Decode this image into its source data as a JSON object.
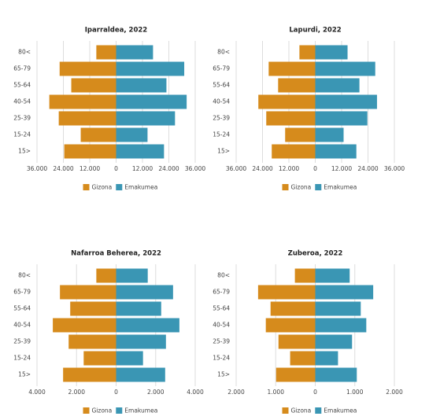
{
  "chart_data": [
    {
      "type": "pyramid",
      "title": "Iparraldea, 2022",
      "categories": [
        "80<",
        "65-79",
        "55-64",
        "40-54",
        "25-39",
        "15-24",
        "15>"
      ],
      "series": [
        {
          "name": "Gizona",
          "color": "#d68b1c",
          "values": [
            -9000,
            -25700,
            -20400,
            -30400,
            -26100,
            -16100,
            -23600
          ]
        },
        {
          "name": "Emakumea",
          "color": "#3a96b4",
          "values": [
            16800,
            31000,
            22900,
            32100,
            26800,
            14300,
            21800
          ]
        }
      ],
      "xlim": [
        -36000,
        36000
      ],
      "xticks": [
        {
          "value": -36000,
          "label": "36.000"
        },
        {
          "value": -24000,
          "label": "24.000"
        },
        {
          "value": -12000,
          "label": "12.000"
        },
        0,
        {
          "value": 12000,
          "label": "12.000"
        },
        {
          "value": 24000,
          "label": "24.000"
        },
        {
          "value": 36000,
          "label": "36.000"
        }
      ],
      "grid": true
    },
    {
      "type": "pyramid",
      "title": "Lapurdi, 2022",
      "categories": [
        "80<",
        "65-79",
        "55-64",
        "40-54",
        "25-39",
        "15-24",
        "15>"
      ],
      "series": [
        {
          "name": "Gizona",
          "color": "#d68b1c",
          "values": [
            -7200,
            -21200,
            -16900,
            -25900,
            -22300,
            -13700,
            -19800
          ]
        },
        {
          "name": "Emakumea",
          "color": "#3a96b4",
          "values": [
            14700,
            27300,
            20100,
            28100,
            23700,
            12900,
            18700
          ]
        }
      ],
      "xlim": [
        -36000,
        36000
      ],
      "xticks": [
        {
          "value": -36000,
          "label": "36.000"
        },
        {
          "value": -24000,
          "label": "24.000"
        },
        {
          "value": -12000,
          "label": "12.000"
        },
        0,
        {
          "value": 12000,
          "label": "12.000"
        },
        {
          "value": 24000,
          "label": "24.000"
        },
        {
          "value": 36000,
          "label": "36.000"
        }
      ],
      "grid": true
    },
    {
      "type": "pyramid",
      "title": "Nafarroa Beherea, 2022",
      "categories": [
        "80<",
        "65-79",
        "55-64",
        "40-54",
        "25-39",
        "15-24",
        "15>"
      ],
      "series": [
        {
          "name": "Gizona",
          "color": "#d68b1c",
          "values": [
            -1000,
            -2840,
            -2320,
            -3200,
            -2400,
            -1640,
            -2680
          ]
        },
        {
          "name": "Emakumea",
          "color": "#3a96b4",
          "values": [
            1600,
            2880,
            2280,
            3200,
            2520,
            1360,
            2480
          ]
        }
      ],
      "xlim": [
        -4000,
        4000
      ],
      "xticks": [
        {
          "value": -4000,
          "label": "4.000"
        },
        {
          "value": -2000,
          "label": "2.000"
        },
        0,
        {
          "value": 2000,
          "label": "2.000"
        },
        {
          "value": 4000,
          "label": "4.000"
        }
      ],
      "grid": true
    },
    {
      "type": "pyramid",
      "title": "Zuberoa, 2022",
      "categories": [
        "80<",
        "65-79",
        "55-64",
        "40-54",
        "25-39",
        "15-24",
        "15>"
      ],
      "series": [
        {
          "name": "Gizona",
          "color": "#d68b1c",
          "values": [
            -515,
            -1445,
            -1130,
            -1250,
            -930,
            -635,
            -990
          ]
        },
        {
          "name": "Emakumea",
          "color": "#3a96b4",
          "values": [
            870,
            1465,
            1150,
            1290,
            930,
            575,
            1050
          ]
        }
      ],
      "xlim": [
        -2000,
        2000
      ],
      "xticks": [
        {
          "value": -2000,
          "label": "2.000"
        },
        {
          "value": -1000,
          "label": "1.000"
        },
        0,
        {
          "value": 1000,
          "label": "1.000"
        },
        {
          "value": 2000,
          "label": "2.000"
        }
      ],
      "grid": true
    }
  ]
}
